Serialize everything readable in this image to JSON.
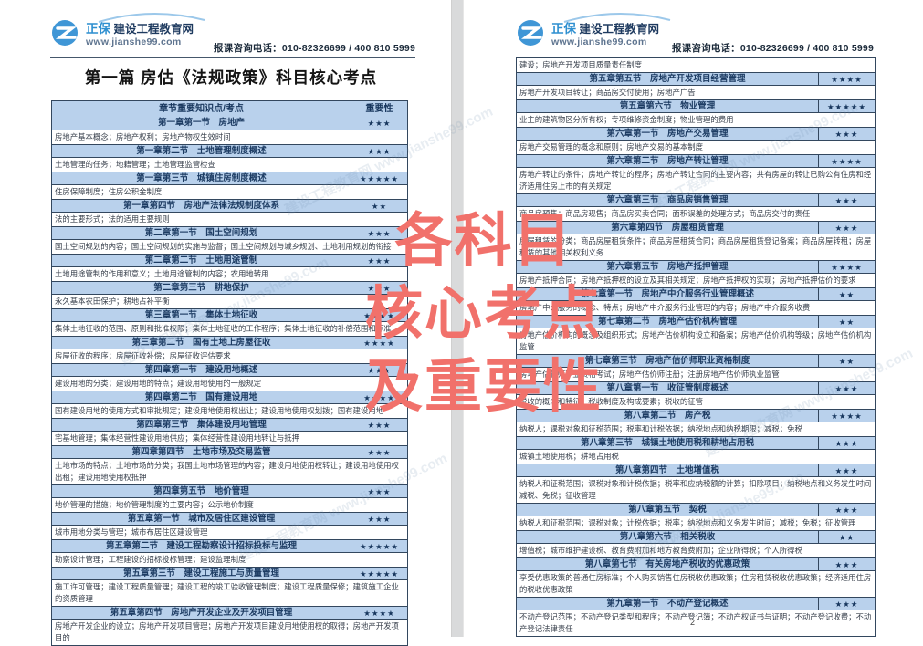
{
  "colors": {
    "section_fill": "#b9d1ec",
    "table_border": "#33475e",
    "watermark_red": "#f1716b",
    "page_gap_gray": "#d9dadb"
  },
  "header": {
    "brand_zheng": "正保",
    "brand_rest": "建设工程教育网",
    "site": "www.jianshe99.com",
    "phone_line": "报课咨询电话：010-82326699 / 400 810 5999"
  },
  "watermark": {
    "line1": "各科目",
    "line2": "核心考点",
    "line3": "及重要性",
    "bg_text": "建设工程教育网 www.jianshe99.com"
  },
  "left_page": {
    "title": "第一篇 房估《法规政策》科目核心考点",
    "table_header": {
      "col1": "章节重要知识点/考点",
      "col2": "重要性"
    },
    "rows": [
      {
        "type": "section",
        "text": "第一章第一节　房地产",
        "stars": 3
      },
      {
        "type": "content",
        "text": "房地产基本概念；房地产权利；房地产物权生效时间"
      },
      {
        "type": "section",
        "text": "第一章第二节　土地管理制度概述",
        "stars": 3
      },
      {
        "type": "content",
        "text": "土地管理的任务；地籍管理；土地管理监管检查"
      },
      {
        "type": "section",
        "text": "第一章第三节　城镇住房制度概述",
        "stars": 5
      },
      {
        "type": "content",
        "text": "住房保障制度；住房公积金制度"
      },
      {
        "type": "section",
        "text": "第一章第四节　房地产法律法规制度体系",
        "stars": 2
      },
      {
        "type": "content",
        "text": "法的主要形式；法的适用主要规则"
      },
      {
        "type": "section",
        "text": "第二章第一节　国土空间规划",
        "stars": 3
      },
      {
        "type": "content",
        "text": "国土空间规划的内容；国土空间规划的实施与监督；国土空间规划与城乡规划、土地利用规划的衔接"
      },
      {
        "type": "section",
        "text": "第二章第二节　土地用途管制",
        "stars": 3
      },
      {
        "type": "content",
        "text": "土地用途管制的作用和意义；土地用途管制的内容；农用地转用"
      },
      {
        "type": "section",
        "text": "第二章第三节　耕地保护",
        "stars": 3
      },
      {
        "type": "content",
        "text": "永久基本农田保护；耕地占补平衡"
      },
      {
        "type": "section",
        "text": "第三章第一节　集体土地征收",
        "stars": 4
      },
      {
        "type": "content",
        "text": "集体土地征收的范围、原则和批准权限；集体土地征收的工作程序；集体土地征收的补偿范围和标准"
      },
      {
        "type": "section",
        "text": "第三章第二节　国有土地上房屋征收",
        "stars": 4
      },
      {
        "type": "content",
        "text": "房屋征收的程序；房屋征收补偿；房屋征收评估要求"
      },
      {
        "type": "section",
        "text": "第四章第一节　建设用地概述",
        "stars": 3
      },
      {
        "type": "content",
        "text": "建设用地的分类；建设用地的特点；建设用地使用的一般规定"
      },
      {
        "type": "section",
        "text": "第四章第二节　国有建设用地",
        "stars": 4
      },
      {
        "type": "content",
        "text": "国有建设用地的使用方式和审批规定；建设用地使用权出让；建设用地使用权划拨；国有建设用地"
      },
      {
        "type": "section",
        "text": "第四章第三节　集体建设用地管理",
        "stars": 3
      },
      {
        "type": "content",
        "text": "宅基地管理；集体经营性建设用地供应；集体经营性建设用地转让与抵押"
      },
      {
        "type": "section",
        "text": "第四章第四节　土地市场及交易监管",
        "stars": 3
      },
      {
        "type": "content",
        "text": "土地市场的特点；土地市场的分类；我国土地市场管理的内容；建设用地使用权转让；建设用地使用权出租；建设用地使用权抵押"
      },
      {
        "type": "section",
        "text": "第四章第五节　地价管理",
        "stars": 3
      },
      {
        "type": "content",
        "text": "地价管理的措施；地价管理制度的主要内容；公示地价制度"
      },
      {
        "type": "section",
        "text": "第五章第一节　城市及居住区建设管理",
        "stars": 3
      },
      {
        "type": "content",
        "text": "城市用地分类与管理；城市布居住区建设管理"
      },
      {
        "type": "section",
        "text": "第五章第二节　建设工程勘察设计招标投标与监理",
        "stars": 5
      },
      {
        "type": "content",
        "text": "勘察设计管理；工程建设的招标投标管理；建设监理制度"
      },
      {
        "type": "section",
        "text": "第五章第三节　建设工程施工与质量管理",
        "stars": 5
      },
      {
        "type": "content",
        "text": "施工许可管理；建设工程质量管理；建设工程的竣工验收管理制度；建设工程质量保修；建筑施工企业的资质管理"
      },
      {
        "type": "section",
        "text": "第五章第四节　房地产开发企业及开发项目管理",
        "stars": 4
      },
      {
        "type": "content",
        "text": "房地产开发企业的设立；房地产开发项目管理；房地产开发项目建设用地使用权的取得；房地产开发项目的"
      }
    ],
    "page_number": "1",
    "footer_dot": "·"
  },
  "right_page": {
    "rows": [
      {
        "type": "content",
        "text": "建设；房地产开发项目质量责任制度"
      },
      {
        "type": "section",
        "text": "第五章第五节　房地产开发项目经营管理",
        "stars": 4
      },
      {
        "type": "content",
        "text": "房地产开发项目转让；商品房交付使用；房地产广告"
      },
      {
        "type": "section",
        "text": "第五章第六节　物业管理",
        "stars": 5
      },
      {
        "type": "content",
        "text": "业主的建筑物区分所有权；专项维修资金制度；物业管理的费用"
      },
      {
        "type": "section",
        "text": "第六章第一节　房地产交易管理",
        "stars": 3
      },
      {
        "type": "content",
        "text": "房地产交易管理的概念和原则；房地产交易的基本制度"
      },
      {
        "type": "section",
        "text": "第六章第二节　房地产转让管理",
        "stars": 4
      },
      {
        "type": "content",
        "text": "房地产转让的条件；房地产转让的程序；房地产转让合同的主要内容；共有房屋的转让已购公有住房和经济适用住房上市的有关规定"
      },
      {
        "type": "section",
        "text": "第六章第三节　商品房销售管理",
        "stars": 3
      },
      {
        "type": "content",
        "text": "商品房预售；商品房现售；商品房买卖合同；面积误差的处理方式；商品房交付的责任"
      },
      {
        "type": "section",
        "text": "第六章第四节　房屋租赁管理",
        "stars": 3
      },
      {
        "type": "content",
        "text": "房屋租赁的分类；商品房屋租赁条件；商品房屋租赁合同；商品房屋租赁登记备案；商品房屋转租；房屋租赁的其他相关权利义务"
      },
      {
        "type": "section",
        "text": "第六章第五节　房地产抵押管理",
        "stars": 4
      },
      {
        "type": "content",
        "text": "房地产抵押合同；房地产抵押权的设立及其相关规定；房地产抵押权的实现；房地产抵押估价的要求"
      },
      {
        "type": "section",
        "text": "第七章第一节　房地产中介服务行业管理概述",
        "stars": 2
      },
      {
        "type": "content",
        "text": "房地产中介服务的概念、特点；房地产中介服务行业管理的内容；房地产中介服务收费"
      },
      {
        "type": "section",
        "text": "第七章第二节　房地产估价机构管理",
        "stars": 2
      },
      {
        "type": "content",
        "text": "房地产估价机构的概念及组织形式；房地产估价机构设立和备案；房地产估价机构等级；房地产估价机构监管"
      },
      {
        "type": "section",
        "text": "第七章第三节　房地产估价师职业资格制度",
        "stars": 2
      },
      {
        "type": "content",
        "text": "房地产估价师职业资格考试；房地产估价师注册；注册房地产估价师执业监管"
      },
      {
        "type": "section",
        "text": "第八章第一节　收征管制度概述",
        "stars": 3
      },
      {
        "type": "content",
        "text": "税收的概念和特征；税收制度及构成要素；税收的征管"
      },
      {
        "type": "section",
        "text": "第八章第二节　房产税",
        "stars": 4
      },
      {
        "type": "content",
        "text": "纳税人；课税对象和征税范围；税率和计税依据；纳税地点和纳税期限；减税；免税"
      },
      {
        "type": "section",
        "text": "第八章第三节　城镇土地使用税和耕地占用税",
        "stars": 3
      },
      {
        "type": "content",
        "text": "城镇土地使用税；耕地占用税"
      },
      {
        "type": "section",
        "text": "第八章第四节　土地增值税",
        "stars": 3
      },
      {
        "type": "content",
        "text": "纳税人和征税范围；课税对象和计税依据；税率和应纳税额的计算；扣除项目；纳税地点和义务发生时间减税、免税；征收管理"
      },
      {
        "type": "section",
        "text": "第八章第五节　契税",
        "stars": 3
      },
      {
        "type": "content",
        "text": "纳税人和征税范围；课税对象；计税依据；税率；纳税地点和义务发生时间；减税；免税；征收管理"
      },
      {
        "type": "section",
        "text": "第八章第六节　相关税收",
        "stars": 2
      },
      {
        "type": "content",
        "text": "增值税；城市维护建设税、教育费附加和地方教育费附加；企业所得税；个人所得税"
      },
      {
        "type": "section",
        "text": "第八章第七节　有关房地产税收的优惠政策",
        "stars": 3
      },
      {
        "type": "content",
        "text": "享受优惠政策的普通住房标准；个人购买销售住房税收优惠政策；住房租赁税收优惠政策；经济适用住房的税收优惠政策"
      },
      {
        "type": "section",
        "text": "第九章第一节　不动产登记概述",
        "stars": 3
      },
      {
        "type": "content",
        "text": "不动产登记范围；不动产登记类型和程序；不动产登记簿；不动产权证书与证明；不动产登记收费；不动产登记法律责任"
      }
    ],
    "page_number": "2",
    "footer_dot": "·"
  }
}
